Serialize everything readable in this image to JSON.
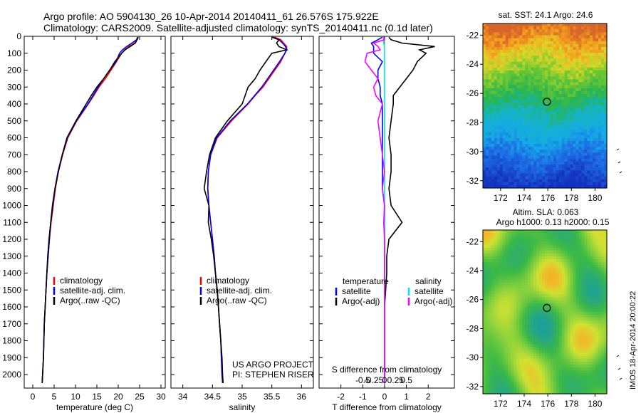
{
  "header": {
    "line1": "Argo profile: AO 5904130_26 10-Apr-2014 20140411_61 26.576S 175.922E",
    "line2": "Climatology: CARS2009. Satellite-adjusted climatology: synTS_20140411.nc (0.1d later)"
  },
  "project": {
    "line1": "US ARGO PROJECT",
    "line2": "PI: STEPHEN RISER"
  },
  "credit": "IMOS 18-Apr-2014 20:00:22",
  "colors": {
    "climatology": "#ff0000",
    "satellite": "#0000ff",
    "argo": "#000000",
    "salinity_satellite": "#00e5ee",
    "salinity_argo": "#ff00ff"
  },
  "chart_data": [
    {
      "type": "line",
      "xlabel": "temperature (deg C)",
      "ylabel": "",
      "xlim": [
        -2,
        31
      ],
      "ylim": [
        2080,
        0
      ],
      "xticks": [
        "0",
        "5",
        "10",
        "15",
        "20",
        "25",
        "30"
      ],
      "yticks": [
        "0",
        "100",
        "200",
        "300",
        "400",
        "500",
        "600",
        "700",
        "800",
        "900",
        "1000",
        "1100",
        "1200",
        "1300",
        "1400",
        "1500",
        "1600",
        "1700",
        "1800",
        "1900",
        "2000"
      ],
      "legend": [
        "climatology",
        "satellite-adj. clim.",
        "Argo(..raw -QC)"
      ],
      "depth": [
        5,
        20,
        40,
        60,
        80,
        100,
        150,
        200,
        250,
        300,
        350,
        400,
        500,
        600,
        700,
        800,
        900,
        1000,
        1100,
        1200,
        1300,
        1400,
        1500,
        1600,
        1700,
        1800,
        1900,
        2000,
        2050
      ],
      "series": [
        {
          "name": "climatology",
          "values": [
            24.6,
            24.4,
            23.8,
            22.5,
            21.5,
            20.8,
            19.6,
            18.3,
            17.0,
            15.5,
            14.3,
            13.0,
            10.3,
            8.2,
            7.0,
            6.0,
            5.3,
            4.8,
            4.3,
            3.9,
            3.6,
            3.3,
            3.1,
            2.9,
            2.7,
            2.6,
            2.5,
            2.3,
            2.2
          ]
        },
        {
          "name": "satellite-adj. clim.",
          "values": [
            24.5,
            24.3,
            23.2,
            22.0,
            21.0,
            20.3,
            19.5,
            18.0,
            16.6,
            15.3,
            14.1,
            12.9,
            10.2,
            8.1,
            6.9,
            5.9,
            5.2,
            4.7,
            4.2,
            3.9,
            3.6,
            3.3,
            3.1,
            2.9,
            2.7,
            2.6,
            2.5,
            2.3,
            2.2
          ]
        },
        {
          "name": "Argo(..raw -QC)",
          "values": [
            24.7,
            24.4,
            24.0,
            22.8,
            21.6,
            20.8,
            19.2,
            18.0,
            16.6,
            15.0,
            13.7,
            12.5,
            10.1,
            8.0,
            6.9,
            6.0,
            5.2,
            4.6,
            4.2,
            3.8,
            3.5,
            3.3,
            3.1,
            2.9,
            2.7,
            2.6,
            2.5,
            2.3,
            2.2
          ]
        }
      ]
    },
    {
      "type": "line",
      "xlabel": "salinity",
      "ylabel": "",
      "xlim": [
        33.8,
        36.2
      ],
      "ylim": [
        2080,
        0
      ],
      "xticks": [
        "34",
        "34.5",
        "35",
        "35.5",
        "36"
      ],
      "legend": [
        "climatology",
        "satellite-adj. clim.",
        "Argo(..raw -QC)"
      ],
      "depth": [
        5,
        20,
        40,
        60,
        80,
        100,
        150,
        200,
        250,
        300,
        350,
        400,
        500,
        600,
        700,
        800,
        900,
        1000,
        1100,
        1200,
        1300,
        1400,
        1500,
        1600,
        1700,
        1800,
        1900,
        2000,
        2050
      ],
      "series": [
        {
          "name": "climatology",
          "values": [
            35.55,
            35.65,
            35.7,
            35.75,
            35.75,
            35.72,
            35.65,
            35.55,
            35.45,
            35.35,
            35.22,
            35.1,
            34.82,
            34.58,
            34.47,
            34.43,
            34.42,
            34.44,
            34.47,
            34.5,
            34.53,
            34.55,
            34.58,
            34.6,
            34.62,
            34.64,
            34.65,
            34.66,
            34.67
          ]
        },
        {
          "name": "satellite-adj. clim.",
          "values": [
            35.52,
            35.62,
            35.68,
            35.73,
            35.75,
            35.72,
            35.63,
            35.53,
            35.43,
            35.33,
            35.21,
            35.09,
            34.8,
            34.57,
            34.47,
            34.43,
            34.42,
            34.44,
            34.47,
            34.5,
            34.53,
            34.55,
            34.58,
            34.6,
            34.62,
            34.64,
            34.65,
            34.66,
            34.67
          ]
        },
        {
          "name": "Argo(..raw -QC)",
          "values": [
            35.5,
            35.62,
            35.58,
            35.62,
            35.75,
            35.5,
            35.4,
            35.3,
            35.22,
            35.1,
            35.05,
            35.0,
            34.75,
            34.55,
            34.45,
            34.4,
            34.36,
            34.44,
            34.43,
            34.48,
            34.52,
            34.55,
            34.58,
            34.6,
            34.62,
            34.64,
            34.66,
            34.67,
            34.68
          ]
        }
      ]
    },
    {
      "type": "line",
      "xlabel": "T difference from climatology",
      "xlabel_top": "S difference from climatology",
      "ylabel": "",
      "xlim": [
        -3,
        3.2
      ],
      "ylim": [
        2080,
        0
      ],
      "xticks": [
        "-2",
        "-1",
        "0",
        "1",
        "2"
      ],
      "s_xticks": [
        "-0.5",
        "-0.25",
        "0",
        "0.25",
        "0.5"
      ],
      "legend_titles": [
        "temperature",
        "salinity"
      ],
      "legend": [
        "satellite",
        "Argo(-adj)",
        "satellite",
        "Argo(-adj)"
      ],
      "depth": [
        5,
        20,
        40,
        60,
        80,
        100,
        150,
        200,
        250,
        300,
        350,
        400,
        500,
        600,
        700,
        800,
        900,
        1000,
        1100,
        1200,
        1300,
        1400,
        1500,
        1600,
        1700,
        1800,
        1900,
        2000,
        2050
      ],
      "series": [
        {
          "name": "temperature satellite",
          "values": [
            -0.1,
            -0.3,
            -0.6,
            -0.5,
            -0.5,
            -0.5,
            -0.1,
            -0.3,
            -0.3,
            -0.2,
            -0.2,
            -0.1,
            -0.1,
            -0.1,
            -0.1,
            -0.1,
            -0.1,
            0,
            0,
            0,
            0,
            0,
            0,
            0,
            0,
            0,
            0,
            0,
            0
          ]
        },
        {
          "name": "temperature Argo(-adj)",
          "values": [
            0.2,
            0.3,
            0.8,
            2.3,
            1.6,
            1.9,
            1.5,
            1.3,
            1.0,
            0.7,
            0.4,
            0.4,
            0.3,
            0.2,
            0.3,
            0.3,
            0.2,
            0.3,
            0.8,
            0.2,
            0.1,
            0.1,
            0.05,
            0,
            0,
            0,
            0,
            0,
            0
          ]
        },
        {
          "name": "salinity satellite",
          "values": [
            -0.02,
            -0.03,
            -0.02,
            0,
            0,
            0,
            0,
            0,
            0,
            0,
            0,
            0,
            0,
            0,
            0,
            0,
            0,
            0,
            0,
            0,
            0,
            0,
            0,
            0,
            0,
            0,
            0,
            0,
            0
          ]
        },
        {
          "name": "salinity Argo(-adj)",
          "values": [
            -0.02,
            0,
            -0.25,
            -0.15,
            -0.1,
            -0.4,
            -0.45,
            -0.3,
            -0.15,
            -0.25,
            -0.2,
            -0.05,
            -0.15,
            -0.1,
            -0.05,
            0,
            -0.05,
            0,
            -0.02,
            0,
            0,
            0,
            0,
            0,
            0,
            0,
            0,
            0,
            0
          ]
        }
      ]
    },
    {
      "type": "heatmap",
      "title": "sat. SST: 24.1  Argo: 24.6",
      "xlim": [
        170.5,
        181
      ],
      "ylim": [
        -32.5,
        -21.2
      ],
      "xticks": [
        "172",
        "174",
        "176",
        "178",
        "180"
      ],
      "yticks": [
        "-22",
        "-24",
        "-26",
        "-28",
        "-30",
        "-32"
      ],
      "marker": {
        "lon": 175.922,
        "lat": -26.576
      }
    },
    {
      "type": "heatmap",
      "title": "Altim. SLA: 0.063",
      "subtitle": "Argo h1000: 0.13  h2000: 0.15",
      "xlim": [
        170.5,
        181
      ],
      "ylim": [
        -32.5,
        -21.2
      ],
      "xticks": [
        "172",
        "174",
        "176",
        "178",
        "180"
      ],
      "yticks": [
        "-22",
        "-24",
        "-26",
        "-28",
        "-30",
        "-32"
      ],
      "marker": {
        "lon": 175.922,
        "lat": -26.576
      }
    }
  ]
}
